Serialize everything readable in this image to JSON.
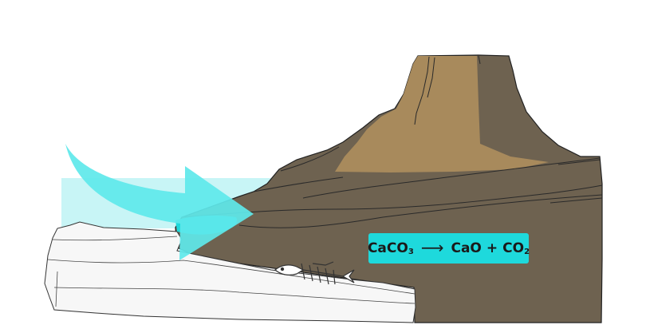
{
  "colors": {
    "mountain_dark": "#6e6250",
    "mountain_light": "#a88a5c",
    "heat_arrow": "#5ee8ea",
    "heat_band": "#c8f5f6",
    "limestone": "#f7f7f7",
    "equation_bg": "#1ed9dc"
  },
  "icons": [
    "heat-arrow-icon",
    "fish-fossil-icon"
  ],
  "equation": {
    "reactant": "CaCO",
    "reactant_sub": "3",
    "arrow": "⟶",
    "product1": "CaO",
    "plus": "+",
    "product2": "CO",
    "product2_sub": "2"
  }
}
